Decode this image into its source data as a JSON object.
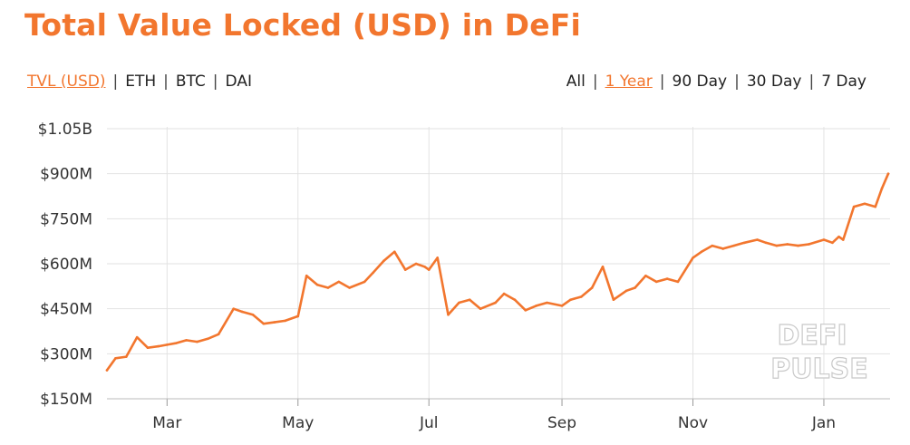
{
  "title": "Total Value Locked (USD) in DeFi",
  "metric_options": [
    "TVL (USD)",
    "ETH",
    "BTC",
    "DAI"
  ],
  "metric_active_index": 0,
  "range_options": [
    "All",
    "1 Year",
    "90 Day",
    "30 Day",
    "7 Day"
  ],
  "range_active_index": 1,
  "watermark": [
    "DEFI",
    "PULSE"
  ],
  "colors": {
    "accent": "#f2762e",
    "grid": "#e2e2e2",
    "text": "#222222"
  },
  "chart_data": {
    "type": "line",
    "x_ticks": [
      "Mar",
      "May",
      "Jul",
      "Sep",
      "Nov",
      "Jan"
    ],
    "y_ticks": [
      "$150M",
      "$300M",
      "$450M",
      "$600M",
      "$750M",
      "$900M",
      "$1.05B"
    ],
    "ylim": [
      150,
      1050
    ],
    "y_unit": "millions USD",
    "x_domain": [
      "2019-02-01",
      "2020-01-31"
    ],
    "grid": true,
    "series": [
      {
        "x": [
          "2019-02-01",
          "2019-02-05",
          "2019-02-10",
          "2019-02-15",
          "2019-02-20",
          "2019-02-25",
          "2019-03-01",
          "2019-03-05",
          "2019-03-10",
          "2019-03-15",
          "2019-03-20",
          "2019-03-25",
          "2019-04-01",
          "2019-04-05",
          "2019-04-10",
          "2019-04-15",
          "2019-04-20",
          "2019-04-25",
          "2019-05-01",
          "2019-05-05",
          "2019-05-10",
          "2019-05-15",
          "2019-05-20",
          "2019-05-25",
          "2019-06-01",
          "2019-06-05",
          "2019-06-10",
          "2019-06-15",
          "2019-06-20",
          "2019-06-25",
          "2019-06-29",
          "2019-07-01",
          "2019-07-05",
          "2019-07-10",
          "2019-07-15",
          "2019-07-20",
          "2019-07-25",
          "2019-08-01",
          "2019-08-05",
          "2019-08-10",
          "2019-08-15",
          "2019-08-20",
          "2019-08-25",
          "2019-09-01",
          "2019-09-05",
          "2019-09-10",
          "2019-09-15",
          "2019-09-20",
          "2019-09-25",
          "2019-10-01",
          "2019-10-05",
          "2019-10-10",
          "2019-10-15",
          "2019-10-20",
          "2019-10-25",
          "2019-11-01",
          "2019-11-05",
          "2019-11-10",
          "2019-11-15",
          "2019-11-20",
          "2019-11-25",
          "2019-12-01",
          "2019-12-05",
          "2019-12-10",
          "2019-12-15",
          "2019-12-20",
          "2019-12-25",
          "2020-01-01",
          "2020-01-05",
          "2020-01-08",
          "2020-01-10",
          "2020-01-15",
          "2020-01-20",
          "2020-01-25",
          "2020-01-28",
          "2020-01-31"
        ],
        "values": [
          245,
          285,
          290,
          355,
          320,
          325,
          330,
          335,
          345,
          340,
          350,
          365,
          450,
          440,
          430,
          400,
          405,
          410,
          425,
          560,
          530,
          520,
          540,
          520,
          540,
          570,
          610,
          640,
          580,
          600,
          590,
          580,
          620,
          430,
          470,
          480,
          450,
          470,
          500,
          480,
          445,
          460,
          470,
          460,
          480,
          490,
          520,
          590,
          480,
          510,
          520,
          560,
          540,
          550,
          540,
          620,
          640,
          660,
          650,
          660,
          670,
          680,
          670,
          660,
          665,
          660,
          665,
          680,
          670,
          690,
          680,
          790,
          800,
          790,
          850,
          900
        ]
      }
    ]
  }
}
